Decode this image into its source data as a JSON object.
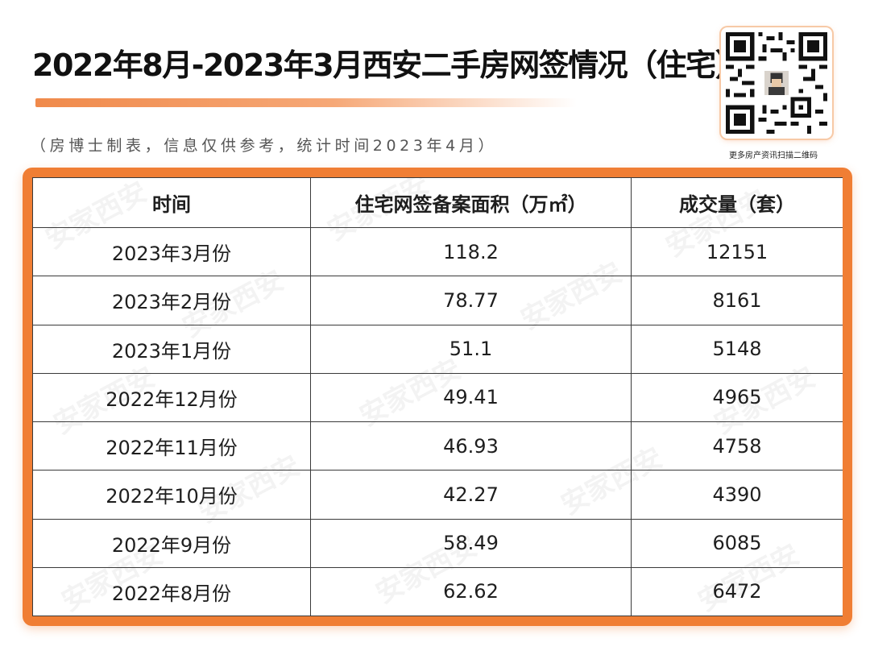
{
  "header": {
    "title": "2022年8月-2023年3月西安二手房网签情况（住宅）",
    "subtitle": "（房博士制表，信息仅供参考，统计时间2023年4月）"
  },
  "qr": {
    "caption": "更多房产资讯扫描二维码",
    "icon": "qr-code-icon"
  },
  "colors": {
    "accent": "#f07e34",
    "border": "#3a3a3a"
  },
  "watermark_text": "安家西安",
  "table": {
    "headers": [
      "时间",
      "住宅网签备案面积（万㎡）",
      "成交量（套）"
    ],
    "rows": [
      [
        "2023年3月份",
        "118.2",
        "12151"
      ],
      [
        "2023年2月份",
        "78.77",
        "8161"
      ],
      [
        "2023年1月份",
        "51.1",
        "5148"
      ],
      [
        "2022年12月份",
        "49.41",
        "4965"
      ],
      [
        "2022年11月份",
        "46.93",
        "4758"
      ],
      [
        "2022年10月份",
        "42.27",
        "4390"
      ],
      [
        "2022年9月份",
        "58.49",
        "6085"
      ],
      [
        "2022年8月份",
        "62.62",
        "6472"
      ]
    ]
  }
}
